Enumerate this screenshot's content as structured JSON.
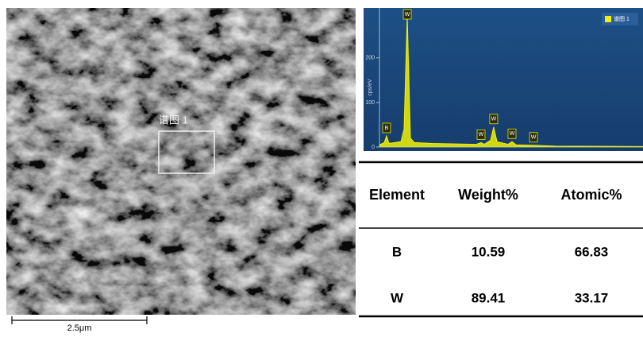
{
  "image": {
    "region_label": "谱图 1",
    "scale_bar": "2.5μm"
  },
  "chart_data": {
    "type": "line",
    "y_label": "cps/eV",
    "x": [
      0,
      0.36,
      0.54,
      0.72,
      1.63,
      1.87,
      2.11,
      2.35,
      2.65,
      4.04,
      7.35,
      7.71,
      7.95,
      8.43,
      8.67,
      8.92,
      9.76,
      10.06,
      10.36,
      11.69,
      13.37,
      20
    ],
    "series": [
      {
        "name": "谱图 1",
        "color": "#f2f200",
        "values": [
          5,
          10,
          25,
          8,
          12,
          40,
          295,
          20,
          10,
          8,
          6,
          10,
          6,
          15,
          45,
          12,
          6,
          12,
          5,
          4,
          2,
          1
        ]
      }
    ],
    "xlim": [
      0,
      20
    ],
    "ylim": [
      0,
      312
    ],
    "yticks": [
      0,
      100,
      200
    ],
    "peak_labels": [
      {
        "label": "B",
        "x": 0.54
      },
      {
        "label": "W",
        "x": 2.11
      },
      {
        "label": "W",
        "x": 7.71
      },
      {
        "label": "W",
        "x": 8.67
      },
      {
        "label": "W",
        "x": 10.06
      },
      {
        "label": "W",
        "x": 11.69
      }
    ],
    "legend": "top-right"
  },
  "table": {
    "header": [
      "Element",
      "Weight%",
      "Atomic%"
    ],
    "rows": [
      [
        "B",
        "10.59",
        "66.83"
      ],
      [
        "W",
        "89.41",
        "33.17"
      ]
    ]
  }
}
